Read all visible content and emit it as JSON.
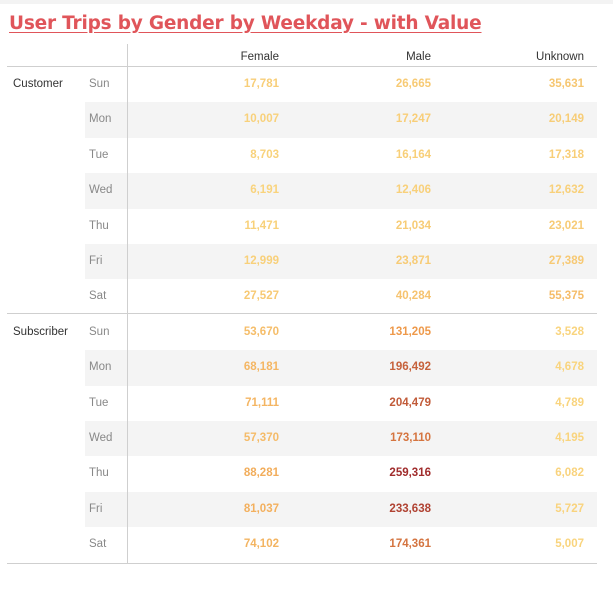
{
  "title": "User Trips by Gender by Weekday - with Value",
  "chart_data": {
    "type": "table",
    "title": "User Trips by Gender by Weekday - with Value",
    "columns": [
      "Female",
      "Male",
      "Unknown"
    ],
    "groups": [
      {
        "label": "Customer",
        "rows": [
          {
            "day": "Sun",
            "values": [
              17781,
              26665,
              35631
            ],
            "labels": [
              "17,781",
              "26,665",
              "35,631"
            ]
          },
          {
            "day": "Mon",
            "values": [
              10007,
              17247,
              20149
            ],
            "labels": [
              "10,007",
              "17,247",
              "20,149"
            ]
          },
          {
            "day": "Tue",
            "values": [
              8703,
              16164,
              17318
            ],
            "labels": [
              "8,703",
              "16,164",
              "17,318"
            ]
          },
          {
            "day": "Wed",
            "values": [
              6191,
              12406,
              12632
            ],
            "labels": [
              "6,191",
              "12,406",
              "12,632"
            ]
          },
          {
            "day": "Thu",
            "values": [
              11471,
              21034,
              23021
            ],
            "labels": [
              "11,471",
              "21,034",
              "23,021"
            ]
          },
          {
            "day": "Fri",
            "values": [
              12999,
              23871,
              27389
            ],
            "labels": [
              "12,999",
              "23,871",
              "27,389"
            ]
          },
          {
            "day": "Sat",
            "values": [
              27527,
              40284,
              55375
            ],
            "labels": [
              "27,527",
              "40,284",
              "55,375"
            ]
          }
        ]
      },
      {
        "label": "Subscriber",
        "rows": [
          {
            "day": "Sun",
            "values": [
              53670,
              131205,
              3528
            ],
            "labels": [
              "53,670",
              "131,205",
              "3,528"
            ]
          },
          {
            "day": "Mon",
            "values": [
              68181,
              196492,
              4678
            ],
            "labels": [
              "68,181",
              "196,492",
              "4,678"
            ]
          },
          {
            "day": "Tue",
            "values": [
              71111,
              204479,
              4789
            ],
            "labels": [
              "71,111",
              "204,479",
              "4,789"
            ]
          },
          {
            "day": "Wed",
            "values": [
              57370,
              173110,
              4195
            ],
            "labels": [
              "57,370",
              "173,110",
              "4,195"
            ]
          },
          {
            "day": "Thu",
            "values": [
              88281,
              259316,
              6082
            ],
            "labels": [
              "88,281",
              "259,316",
              "6,082"
            ]
          },
          {
            "day": "Fri",
            "values": [
              81037,
              233638,
              5727
            ],
            "labels": [
              "81,037",
              "233,638",
              "5,727"
            ]
          },
          {
            "day": "Sat",
            "values": [
              74102,
              174361,
              5007
            ],
            "labels": [
              "74,102",
              "174,361",
              "5,007"
            ]
          }
        ]
      }
    ],
    "color_scale": {
      "low": "#f9d67f",
      "mid": "#ef9a4a",
      "high": "#a02c2c",
      "max_value": 259316
    },
    "row_banding": true
  }
}
